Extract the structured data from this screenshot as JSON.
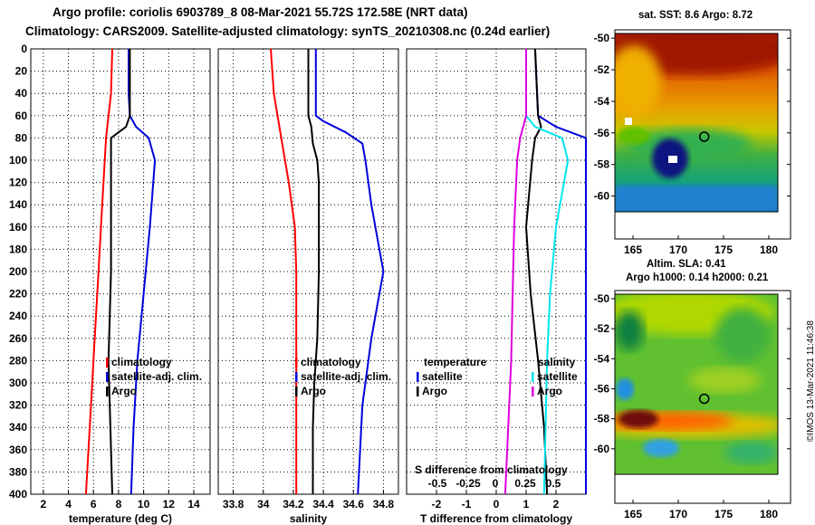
{
  "titles": {
    "line1": "Argo profile: coriolis 6903789_8 08-Mar-2021 55.72S 172.58E (NRT data)",
    "line2": "Climatology: CARS2009. Satellite-adjusted climatology: synTS_20210308.nc (0.24d earlier)"
  },
  "colors": {
    "climatology": "#ff0000",
    "satellite": "#0000dd",
    "argo": "#000000",
    "salinity_sat": "#00e5ee",
    "salinity_clim": "#dd00dd"
  },
  "chart_data": [
    {
      "type": "line",
      "name": "temperature",
      "xlabel": "temperature (deg C)",
      "ylabel": "",
      "xlim": [
        1,
        15.3
      ],
      "ylim": [
        400,
        0
      ],
      "xticks": [
        2,
        4,
        6,
        8,
        10,
        12,
        14
      ],
      "yticks": [
        0,
        20,
        40,
        60,
        80,
        100,
        120,
        140,
        160,
        180,
        200,
        220,
        240,
        260,
        280,
        300,
        320,
        340,
        360,
        380,
        400
      ],
      "legend": [
        "climatology",
        "satellite-adj. clim.",
        "Argo"
      ],
      "series": [
        {
          "name": "climatology",
          "color": "#ff0000",
          "y": [
            0,
            40,
            80,
            120,
            160,
            200,
            240,
            280,
            320,
            360,
            400
          ],
          "x": [
            7.5,
            7.4,
            7.0,
            6.8,
            6.6,
            6.4,
            6.2,
            6.0,
            5.8,
            5.6,
            5.4
          ]
        },
        {
          "name": "satellite-adj. clim.",
          "color": "#0000dd",
          "y": [
            0,
            40,
            60,
            70,
            80,
            100,
            160,
            220,
            280,
            340,
            400
          ],
          "x": [
            8.8,
            8.8,
            8.9,
            9.4,
            10.4,
            10.9,
            10.5,
            10.0,
            9.5,
            9.2,
            9.0
          ]
        },
        {
          "name": "Argo",
          "color": "#000000",
          "y": [
            0,
            40,
            60,
            70,
            80,
            100,
            160,
            200,
            240,
            280,
            320,
            360,
            400
          ],
          "x": [
            8.9,
            8.9,
            8.9,
            8.6,
            7.4,
            7.4,
            7.4,
            7.4,
            7.3,
            7.2,
            7.3,
            7.4,
            7.5
          ]
        }
      ]
    },
    {
      "type": "line",
      "name": "salinity",
      "xlabel": "salinity",
      "ylabel": "",
      "xlim": [
        33.7,
        34.9
      ],
      "ylim": [
        400,
        0
      ],
      "xticks": [
        33.8,
        34,
        34.2,
        34.4,
        34.6,
        34.8
      ],
      "tick_labels": [
        "33.8",
        "34",
        "34.2",
        "34.4",
        "34.6",
        "34.8"
      ],
      "legend": [
        "climatology",
        "satellite-adj. clim.",
        "Argo"
      ],
      "series": [
        {
          "name": "climatology",
          "color": "#ff0000",
          "y": [
            0,
            40,
            80,
            120,
            160,
            200,
            260,
            320,
            400
          ],
          "x": [
            34.05,
            34.07,
            34.12,
            34.17,
            34.21,
            34.22,
            34.22,
            34.22,
            34.22
          ]
        },
        {
          "name": "satellite-adj. clim.",
          "color": "#0000dd",
          "y": [
            0,
            60,
            65,
            75,
            85,
            100,
            140,
            200,
            260,
            320,
            400
          ],
          "x": [
            34.35,
            34.35,
            34.4,
            34.55,
            34.66,
            34.68,
            34.72,
            34.8,
            34.72,
            34.66,
            34.63
          ]
        },
        {
          "name": "Argo",
          "color": "#000000",
          "y": [
            0,
            60,
            70,
            85,
            100,
            120,
            200,
            260,
            300,
            340,
            400
          ],
          "x": [
            34.3,
            34.3,
            34.32,
            34.33,
            34.36,
            34.37,
            34.37,
            34.36,
            34.34,
            34.33,
            34.33
          ]
        }
      ]
    },
    {
      "type": "line",
      "name": "differences",
      "xlabel": "T difference from climatology",
      "xlabel_top": "S difference from climatology",
      "xlim": [
        -3,
        3
      ],
      "ylim": [
        400,
        0
      ],
      "xticks": [
        -2,
        -1,
        0,
        1,
        2
      ],
      "top_ticks": [
        "-0.5",
        "-0.25",
        "0",
        "0.25",
        "0.5"
      ],
      "legend_temperature": {
        "title": "temperature",
        "items": [
          "satellite",
          "Argo"
        ]
      },
      "legend_salinity": {
        "title": "salinity",
        "items": [
          "satellite",
          "Argo"
        ]
      },
      "series": [
        {
          "name": "T satellite",
          "color": "#0000dd",
          "y": [
            0,
            60,
            70,
            80,
            100,
            160,
            220,
            280,
            340,
            400
          ],
          "x": [
            1.3,
            1.4,
            2.0,
            3.0,
            3.0,
            3.0,
            3.0,
            3.0,
            3.0,
            3.0
          ]
        },
        {
          "name": "T Argo",
          "color": "#000000",
          "y": [
            0,
            60,
            70,
            80,
            100,
            160,
            220,
            280,
            340,
            400
          ],
          "x": [
            1.3,
            1.4,
            1.5,
            1.3,
            1.2,
            1.0,
            1.15,
            1.4,
            1.6,
            1.7
          ]
        },
        {
          "name": "S satellite",
          "color": "#00e5ee",
          "y": [
            0,
            60,
            70,
            80,
            100,
            160,
            220,
            280,
            340,
            400
          ],
          "x": [
            1.0,
            1.0,
            1.3,
            2.2,
            2.4,
            2.0,
            1.8,
            1.7,
            1.65,
            1.6
          ]
        },
        {
          "name": "S Argo",
          "color": "#dd00dd",
          "y": [
            0,
            60,
            70,
            80,
            100,
            160,
            220,
            280,
            340,
            400
          ],
          "x": [
            1.0,
            1.0,
            0.9,
            0.8,
            0.7,
            0.6,
            0.55,
            0.5,
            0.4,
            0.3
          ]
        }
      ]
    },
    {
      "type": "heatmap",
      "name": "sst-map",
      "title": "sat. SST: 8.6 Argo: 8.72",
      "xlim": [
        163,
        181
      ],
      "ylim": [
        -61,
        -49.7
      ],
      "xticks": [
        165,
        170,
        175,
        180
      ],
      "yticks": [
        -50,
        -52,
        -54,
        -56,
        -58,
        -60
      ],
      "profile_location": {
        "lon": 172.58,
        "lat": -55.72
      }
    },
    {
      "type": "heatmap",
      "name": "sla-map",
      "title_line1": "Altim. SLA: 0.41",
      "title_line2": "Argo h1000: 0.14 h2000: 0.21",
      "xlim": [
        163,
        181
      ],
      "ylim": [
        -61.7,
        -49.7
      ],
      "xticks": [
        165,
        170,
        175,
        180
      ],
      "yticks": [
        -50,
        -52,
        -54,
        -56,
        -58,
        -60
      ],
      "profile_location": {
        "lon": 172.58,
        "lat": -55.72
      }
    }
  ],
  "credit": "©IMOS 13-Mar-2021 11:46:38"
}
